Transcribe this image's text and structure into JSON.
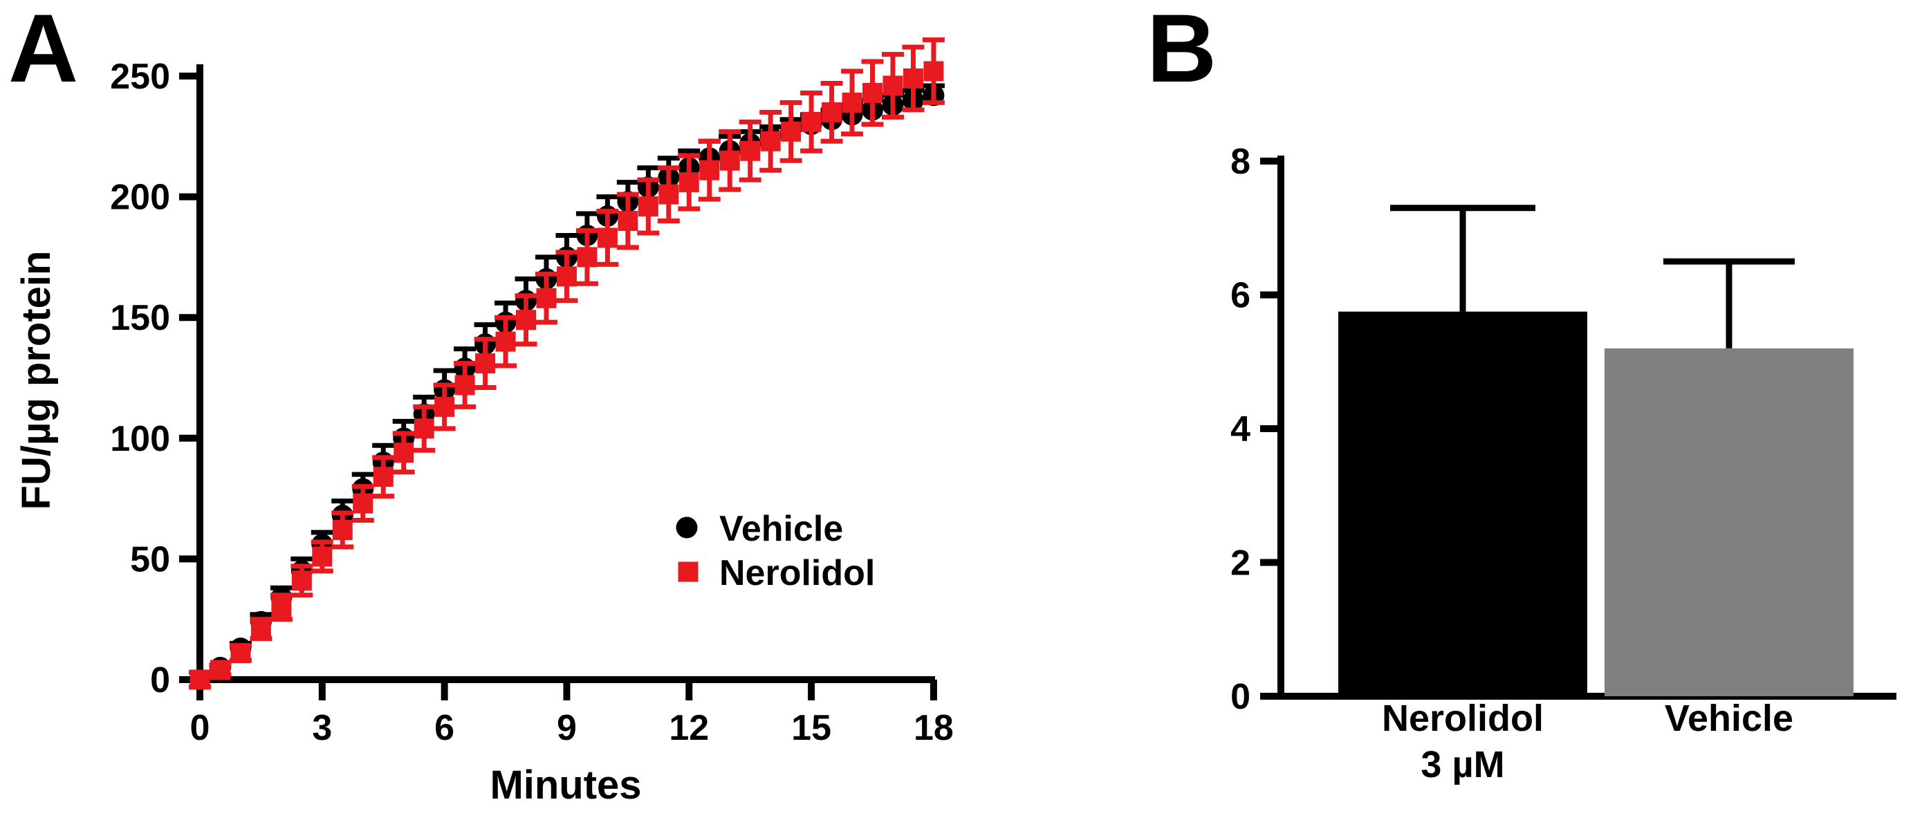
{
  "figure": {
    "panel_a_letter": "A",
    "panel_b_letter": "B"
  },
  "colors": {
    "vehicle": "#000000",
    "nerolidol": "#e8191f",
    "vehicle_bar": "#7f7f7f",
    "axis": "#000000",
    "background": "#ffffff"
  },
  "chart_data": [
    {
      "id": "panel-a-kinetics",
      "type": "scatter",
      "title": "",
      "xlabel": "Minutes",
      "ylabel": "FU/µg protein",
      "xlim": [
        0,
        18
      ],
      "ylim": [
        0,
        250
      ],
      "xticks": [
        0,
        3,
        6,
        9,
        12,
        15,
        18
      ],
      "yticks": [
        0,
        50,
        100,
        150,
        200,
        250
      ],
      "grid": false,
      "legend_position": "inside-lower-right",
      "x": [
        0,
        0.5,
        1,
        1.5,
        2,
        2.5,
        3,
        3.5,
        4,
        4.5,
        5,
        5.5,
        6,
        6.5,
        7,
        7.5,
        8,
        8.5,
        9,
        9.5,
        10,
        10.5,
        11,
        11.5,
        12,
        12.5,
        13,
        13.5,
        14,
        14.5,
        15,
        15.5,
        16,
        16.5,
        17,
        17.5,
        18
      ],
      "series": [
        {
          "name": "Vehicle",
          "marker": "circle",
          "color": "#000000",
          "error_direction": "up",
          "values": [
            0,
            5,
            13,
            24,
            34,
            45,
            56,
            68,
            79,
            90,
            100,
            110,
            120,
            129,
            139,
            148,
            157,
            166,
            175,
            184,
            192,
            198,
            204,
            208,
            212,
            216,
            219,
            222,
            225,
            228,
            230,
            232,
            234,
            236,
            238,
            240,
            242
          ],
          "errors": [
            0,
            1,
            2,
            3,
            4,
            5,
            5,
            6,
            6,
            7,
            7,
            7,
            8,
            8,
            8,
            8,
            9,
            9,
            9,
            9,
            8,
            8,
            8,
            8,
            7,
            7,
            6,
            5,
            4,
            4,
            4,
            4,
            4,
            4,
            4,
            4,
            4
          ]
        },
        {
          "name": "Nerolidol",
          "marker": "square",
          "color": "#e8191f",
          "error_direction": "both",
          "values": [
            0,
            4,
            11,
            21,
            30,
            41,
            51,
            62,
            73,
            84,
            94,
            104,
            113,
            122,
            131,
            140,
            149,
            158,
            167,
            175,
            183,
            190,
            196,
            201,
            206,
            211,
            215,
            219,
            223,
            227,
            231,
            235,
            239,
            243,
            246,
            249,
            252
          ],
          "errors": [
            3,
            2,
            3,
            4,
            5,
            6,
            6,
            7,
            7,
            8,
            8,
            9,
            9,
            9,
            10,
            10,
            10,
            10,
            10,
            11,
            11,
            11,
            11,
            11,
            11,
            12,
            12,
            12,
            12,
            12,
            12,
            12,
            13,
            13,
            13,
            13,
            13
          ]
        }
      ]
    },
    {
      "id": "panel-b-bars",
      "type": "bar",
      "title": "",
      "xlabel": "",
      "ylabel": "",
      "ylim": [
        0,
        8
      ],
      "yticks": [
        0,
        2,
        4,
        6,
        8
      ],
      "grid": false,
      "categories": [
        [
          "Nerolidol",
          "3 µM"
        ],
        [
          "Vehicle"
        ]
      ],
      "values": [
        5.75,
        5.2
      ],
      "errors": [
        1.55,
        1.3
      ],
      "bar_colors": [
        "#000000",
        "#7f7f7f"
      ]
    }
  ]
}
